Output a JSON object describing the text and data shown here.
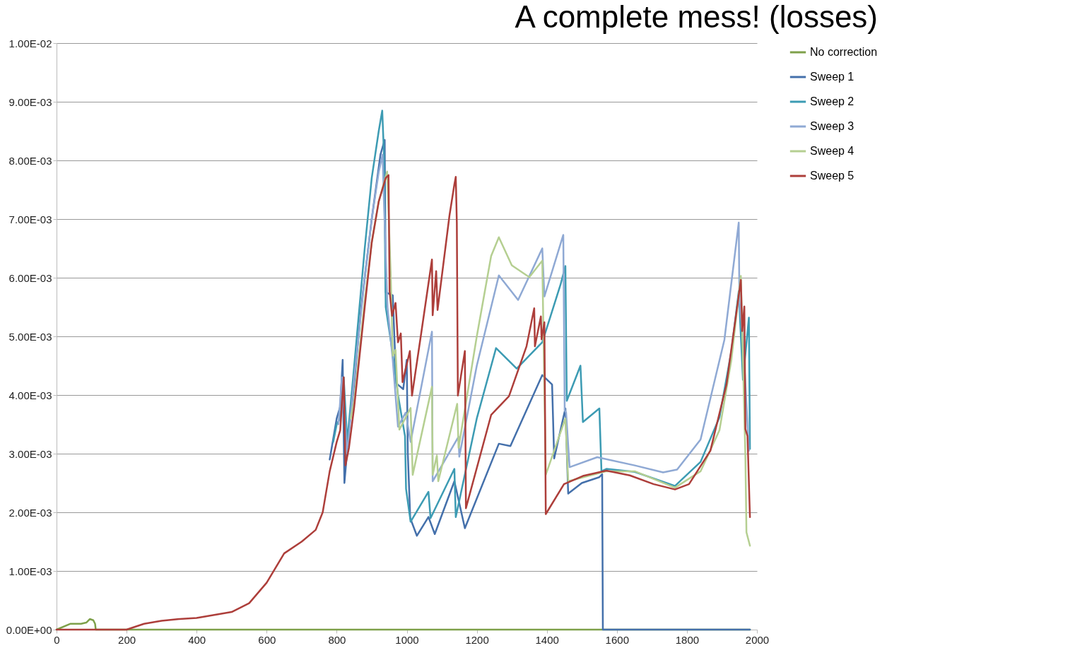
{
  "chart_data": {
    "type": "line",
    "title": "A complete mess! (losses)",
    "xlim": [
      0,
      2000
    ],
    "xticks": [
      0,
      200,
      400,
      600,
      800,
      1000,
      1200,
      1400,
      1600,
      1800,
      2000
    ],
    "ylim": [
      0,
      0.01
    ],
    "yticks": [
      {
        "value": 0,
        "label": "0.00E+00"
      },
      {
        "value": 0.001,
        "label": "1.00E-03"
      },
      {
        "value": 0.002,
        "label": "2.00E-03"
      },
      {
        "value": 0.003,
        "label": "3.00E-03"
      },
      {
        "value": 0.004,
        "label": "4.00E-03"
      },
      {
        "value": 0.005,
        "label": "5.00E-03"
      },
      {
        "value": 0.006,
        "label": "6.00E-03"
      },
      {
        "value": 0.007,
        "label": "7.00E-03"
      },
      {
        "value": 0.008,
        "label": "8.00E-03"
      },
      {
        "value": 0.009,
        "label": "9.00E-03"
      },
      {
        "value": 0.01,
        "label": "1.00E-02"
      }
    ],
    "grid": "y",
    "legend": "right",
    "marker": "none",
    "line_style": "solid",
    "series": [
      {
        "name": "No correction",
        "color": "#7ea04a",
        "x": [
          0,
          40,
          70,
          85,
          95,
          105,
          110,
          112,
          1980
        ],
        "values": [
          0,
          0.0001,
          0.0001,
          0.00012,
          0.00018,
          0.00016,
          0.0001,
          0,
          0
        ]
      },
      {
        "name": "Sweep 1",
        "color": "#4470ab",
        "x": [
          780,
          800,
          810,
          817,
          822,
          835,
          850,
          870,
          900,
          925,
          937,
          940,
          960,
          970,
          990,
          1000,
          1003,
          1010,
          1029,
          1062,
          1080,
          1136,
          1166,
          1263,
          1296,
          1387,
          1415,
          1421,
          1453,
          1461,
          1500,
          1550,
          1558,
          1560,
          1980
        ],
        "values": [
          0.0029,
          0.0036,
          0.0038,
          0.0046,
          0.0025,
          0.0034,
          0.0042,
          0.0055,
          0.007,
          0.0081,
          0.00835,
          0.00575,
          0.0057,
          0.0042,
          0.0041,
          0.0046,
          0.003,
          0.0019,
          0.0016,
          0.00192,
          0.00163,
          0.00253,
          0.00173,
          0.00317,
          0.00313,
          0.00434,
          0.00418,
          0.00292,
          0.00377,
          0.00232,
          0.0025,
          0.0026,
          0.00265,
          0,
          0
        ]
      },
      {
        "name": "Sweep 2",
        "color": "#3c9bb3",
        "x": [
          790,
          800,
          810,
          820,
          830,
          850,
          880,
          900,
          920,
          930,
          935,
          940,
          960,
          975,
          995,
          998,
          1011,
          1062,
          1068,
          1136,
          1140,
          1200,
          1255,
          1314,
          1387,
          1439,
          1453,
          1457,
          1496,
          1503,
          1550,
          1556,
          1570,
          1651,
          1766,
          1839,
          1893,
          1927,
          1948,
          1960,
          1977,
          1980
        ],
        "values": [
          0.0032,
          0.0035,
          0.0036,
          0.0043,
          0.0032,
          0.0045,
          0.0065,
          0.0077,
          0.0085,
          0.00885,
          0.0081,
          0.0055,
          0.0047,
          0.004,
          0.0033,
          0.0024,
          0.00184,
          0.00235,
          0.0019,
          0.00274,
          0.00192,
          0.0036,
          0.0048,
          0.00445,
          0.0049,
          0.00588,
          0.0062,
          0.0039,
          0.0045,
          0.00354,
          0.00377,
          0.0027,
          0.00274,
          0.00269,
          0.00245,
          0.00286,
          0.00362,
          0.00475,
          0.00577,
          0.00426,
          0.00532,
          0.00308
        ]
      },
      {
        "name": "Sweep 3",
        "color": "#8fa9d4",
        "x": [
          805,
          815,
          830,
          850,
          880,
          900,
          920,
          931,
          935,
          945,
          960,
          975,
          997,
          1011,
          1072,
          1074,
          1148,
          1150,
          1200,
          1263,
          1318,
          1387,
          1393,
          1447,
          1451,
          1455,
          1465,
          1544,
          1651,
          1732,
          1772,
          1839,
          1907,
          1948,
          1950,
          1960,
          1977
        ],
        "values": [
          0.0035,
          0.0043,
          0.003,
          0.0043,
          0.006,
          0.007,
          0.0078,
          0.0081,
          0.00728,
          0.0055,
          0.0046,
          0.00346,
          0.0037,
          0.0032,
          0.00508,
          0.00253,
          0.00329,
          0.00295,
          0.0045,
          0.00604,
          0.00562,
          0.0065,
          0.00568,
          0.00673,
          0.00374,
          0.0037,
          0.00277,
          0.00294,
          0.0028,
          0.00268,
          0.00273,
          0.00324,
          0.00494,
          0.00694,
          0.00558,
          0.00498,
          0.00305
        ]
      },
      {
        "name": "Sweep 4",
        "color": "#b5cf91",
        "x": [
          840,
          850,
          880,
          900,
          920,
          944,
          954,
          960,
          968,
          979,
          1011,
          1017,
          1072,
          1074,
          1086,
          1090,
          1144,
          1148,
          1200,
          1241,
          1263,
          1300,
          1350,
          1387,
          1397,
          1453,
          1461,
          1570,
          1651,
          1766,
          1839,
          1893,
          1927,
          1954,
          1967,
          1970,
          1980
        ],
        "values": [
          0.0036,
          0.0039,
          0.0056,
          0.0066,
          0.0073,
          0.00781,
          0.0061,
          0.00467,
          0.00477,
          0.00341,
          0.00378,
          0.00264,
          0.00414,
          0.00264,
          0.00297,
          0.00253,
          0.00385,
          0.0031,
          0.005,
          0.00637,
          0.00669,
          0.00621,
          0.00601,
          0.00629,
          0.00264,
          0.0036,
          0.00253,
          0.0027,
          0.0027,
          0.00242,
          0.0027,
          0.0034,
          0.0046,
          0.00603,
          0.00294,
          0.00166,
          0.00143
        ]
      },
      {
        "name": "Sweep 5",
        "color": "#ad3e3a",
        "x": [
          0,
          100,
          200,
          250,
          300,
          350,
          400,
          450,
          500,
          550,
          600,
          650,
          700,
          740,
          760,
          780,
          800,
          810,
          820,
          825,
          835,
          850,
          880,
          900,
          920,
          940,
          948,
          951,
          958,
          968,
          975,
          983,
          988,
          1009,
          1015,
          1040,
          1072,
          1074,
          1084,
          1088,
          1122,
          1136,
          1140,
          1143,
          1146,
          1166,
          1169,
          1241,
          1292,
          1342,
          1364,
          1366,
          1383,
          1385,
          1393,
          1397,
          1449,
          1503,
          1570,
          1637,
          1705,
          1766,
          1806,
          1867,
          1913,
          1954,
          1958,
          1964,
          1967,
          1973,
          1980
        ],
        "values": [
          0,
          0,
          0,
          0.0001,
          0.00015,
          0.00018,
          0.0002,
          0.00025,
          0.0003,
          0.00045,
          0.0008,
          0.0013,
          0.0015,
          0.0017,
          0.002,
          0.0027,
          0.0032,
          0.0034,
          0.0043,
          0.0028,
          0.0031,
          0.0038,
          0.0055,
          0.0066,
          0.0073,
          0.0077,
          0.00775,
          0.00577,
          0.00535,
          0.00557,
          0.0049,
          0.00505,
          0.00422,
          0.00475,
          0.00399,
          0.005,
          0.00631,
          0.00536,
          0.00611,
          0.00545,
          0.00706,
          0.00759,
          0.00772,
          0.00694,
          0.00399,
          0.00475,
          0.00207,
          0.00366,
          0.00398,
          0.00483,
          0.00548,
          0.00483,
          0.00534,
          0.00495,
          0.00524,
          0.00197,
          0.00248,
          0.00262,
          0.00271,
          0.00263,
          0.00248,
          0.00239,
          0.00248,
          0.00305,
          0.00418,
          0.00596,
          0.00509,
          0.00551,
          0.00342,
          0.0033,
          0.00192
        ]
      }
    ]
  }
}
